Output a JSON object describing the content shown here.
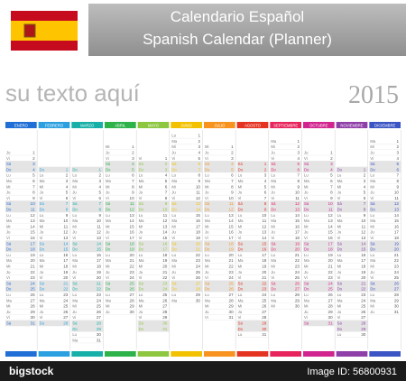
{
  "header": {
    "title": "Calendario Español",
    "subtitle": "Spanish Calendar (Planner)"
  },
  "placeholder": "su texto aquí",
  "year": "2015",
  "weekdays": [
    "Lu",
    "Ma",
    "Mi",
    "Ju",
    "Vi",
    "Sá",
    "Do"
  ],
  "day_numbers": [
    1,
    2,
    3,
    4,
    5,
    6,
    7,
    8,
    9,
    10,
    11,
    12,
    13,
    14,
    15,
    16,
    17,
    18,
    19,
    20,
    21,
    22,
    23,
    24,
    25,
    26,
    27,
    28,
    29,
    30,
    31
  ],
  "months": [
    {
      "name": "ENERO",
      "color": "#1f6fd6",
      "first_weekday": "Ju",
      "last_day": 31
    },
    {
      "name": "FEBRERO",
      "color": "#2aa0e0",
      "first_weekday": "Do",
      "last_day": 28
    },
    {
      "name": "MARZO",
      "color": "#16b0a8",
      "first_weekday": "Do",
      "last_day": 31
    },
    {
      "name": "ABRIL",
      "color": "#2db34a",
      "first_weekday": "Mi",
      "last_day": 30
    },
    {
      "name": "MAYO",
      "color": "#8dc63f",
      "first_weekday": "Vi",
      "last_day": 31
    },
    {
      "name": "JUNIO",
      "color": "#f2c200",
      "first_weekday": "Lu",
      "last_day": 30
    },
    {
      "name": "JULIO",
      "color": "#f7931e",
      "first_weekday": "Mi",
      "last_day": 31
    },
    {
      "name": "AGOSTO",
      "color": "#e53322",
      "first_weekday": "Sá",
      "last_day": 31
    },
    {
      "name": "SEPTIEMBRE",
      "color": "#e8245c",
      "first_weekday": "Ma",
      "last_day": 30
    },
    {
      "name": "OCTUBRE",
      "color": "#d2248f",
      "first_weekday": "Ju",
      "last_day": 31
    },
    {
      "name": "NOVIEMBRE",
      "color": "#8e3fa8",
      "first_weekday": "Do",
      "last_day": 30
    },
    {
      "name": "DICIEMBRE",
      "color": "#3b55c4",
      "first_weekday": "Ma",
      "last_day": 31
    }
  ],
  "footer": {
    "brand": "bigstock",
    "image_id": "Image ID: 56800931"
  }
}
